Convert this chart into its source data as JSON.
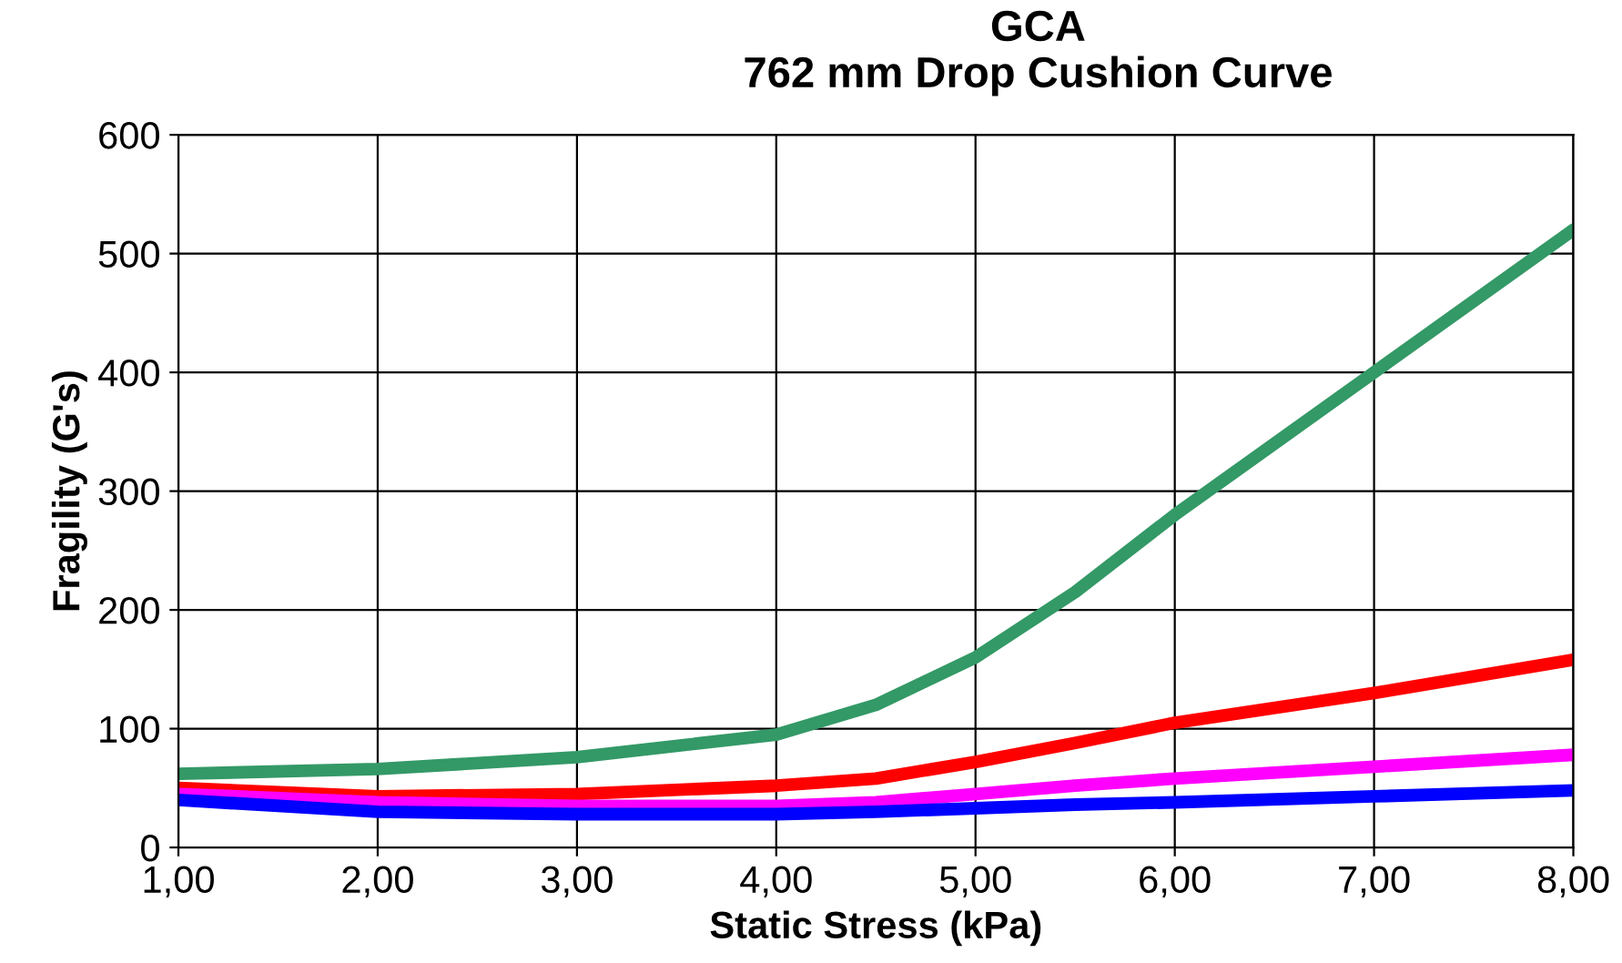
{
  "chart_data": {
    "type": "line",
    "title": "GCA\n762 mm Drop Cushion Curve",
    "xlabel": "Static Stress (kPa)",
    "ylabel": "Fragility (G's)",
    "x": [
      1,
      2,
      3,
      4,
      4.5,
      5,
      5.5,
      6,
      7,
      8
    ],
    "series": [
      {
        "color": "#339966",
        "values": [
          62,
          66,
          76,
          95,
          120,
          160,
          215,
          280,
          400,
          520
        ]
      },
      {
        "color": "#ff0000",
        "values": [
          50,
          43,
          45,
          52,
          58,
          72,
          88,
          105,
          130,
          158
        ]
      },
      {
        "color": "#ff00ff",
        "values": [
          45,
          38,
          35,
          35,
          38,
          45,
          52,
          58,
          68,
          78
        ]
      },
      {
        "color": "#0000ff",
        "values": [
          40,
          30,
          28,
          28,
          30,
          33,
          36,
          38,
          43,
          48
        ]
      }
    ],
    "xlim": [
      1,
      8
    ],
    "ylim": [
      0,
      600
    ],
    "xticks": [
      {
        "value": 1,
        "label": "1,00"
      },
      {
        "value": 2,
        "label": "2,00"
      },
      {
        "value": 3,
        "label": "3,00"
      },
      {
        "value": 4,
        "label": "4,00"
      },
      {
        "value": 5,
        "label": "5,00"
      },
      {
        "value": 6,
        "label": "6,00"
      },
      {
        "value": 7,
        "label": "7,00"
      },
      {
        "value": 8,
        "label": "8,00"
      }
    ],
    "yticks": [
      0,
      100,
      200,
      300,
      400,
      500,
      600
    ],
    "grid": true,
    "marker": "none",
    "line_style": "solid"
  }
}
